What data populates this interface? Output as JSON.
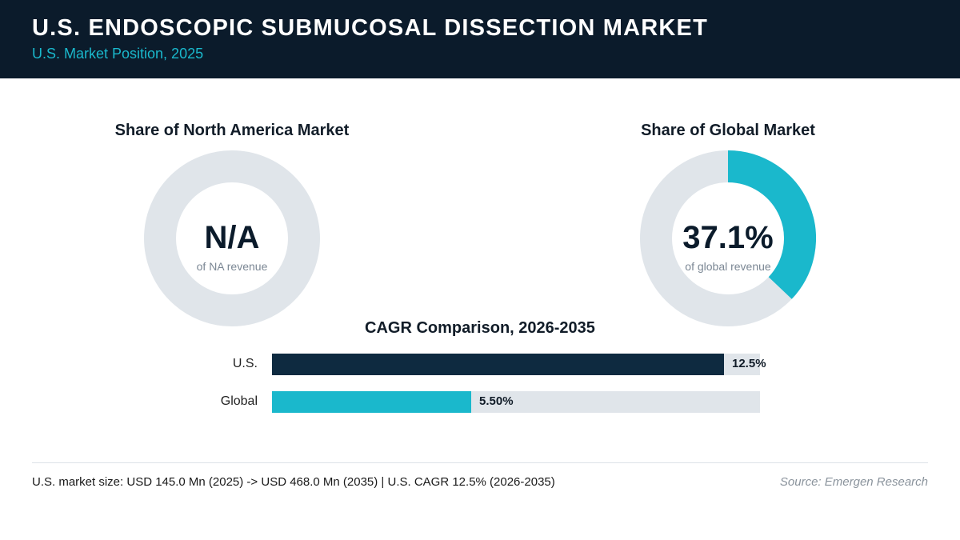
{
  "header": {
    "title": "U.S. ENDOSCOPIC SUBMUCOSAL DISSECTION MARKET",
    "subtitle": "U.S. Market Position, 2025"
  },
  "colors": {
    "header_bg": "#0b1b2b",
    "accent": "#1ab8cc",
    "us_bar": "#0e2a40",
    "track": "#e0e5ea"
  },
  "chart_data": [
    {
      "type": "pie",
      "title": "Share of North America Market",
      "center_value": "N/A",
      "center_caption": "of NA revenue",
      "value": null
    },
    {
      "type": "pie",
      "title": "Share of Global Market",
      "center_value": "37.1%",
      "center_caption": "of global revenue",
      "value": 37.1
    },
    {
      "type": "bar",
      "orientation": "horizontal",
      "title": "CAGR Comparison, 2026-2035",
      "categories": [
        "U.S.",
        "Global"
      ],
      "values": [
        12.5,
        5.5
      ],
      "value_labels": [
        "12.5%",
        "5.50%"
      ],
      "xlim": [
        0,
        13.5
      ]
    }
  ],
  "footer": {
    "summary": "U.S. market size: USD 145.0 Mn (2025) -> USD 468.0 Mn (2035)  |  U.S. CAGR 12.5% (2026-2035)",
    "source": "Source: Emergen Research"
  }
}
